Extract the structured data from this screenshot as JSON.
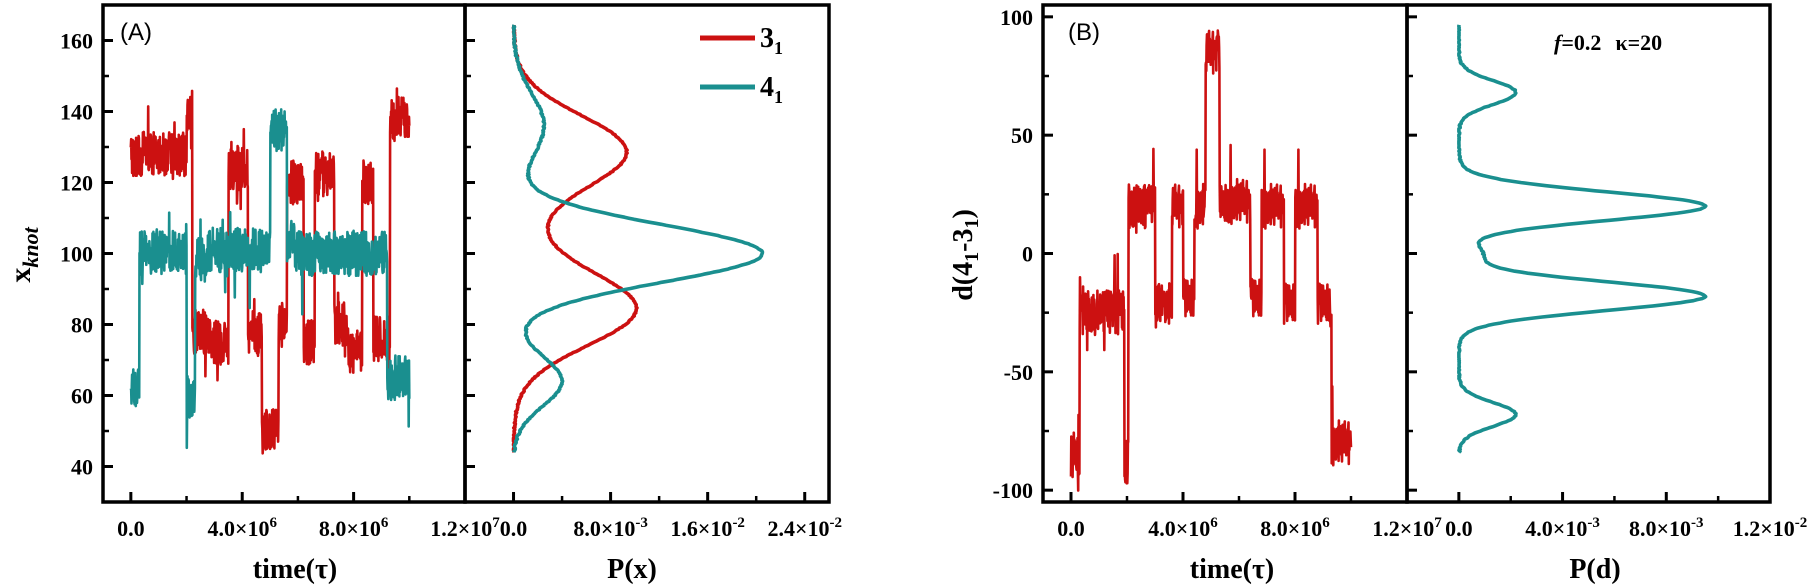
{
  "colors": {
    "knot31": "#cc1111",
    "knot41": "#1a8f8f",
    "axis": "#000000"
  },
  "chart_data": [
    {
      "id": "A-time",
      "type": "line",
      "panel_label": "(A)",
      "ylabel_main": "x",
      "ylabel_sub": "knot",
      "xlabel": "time(τ)",
      "xlim": [
        -1000000,
        12000000
      ],
      "ylim": [
        30,
        170
      ],
      "xticks": [
        0,
        4000000,
        8000000,
        12000000
      ],
      "xtick_labels": [
        "0.0",
        "4.0×10^6",
        "8.0×10^6",
        "1.2×10^7"
      ],
      "yticks": [
        40,
        60,
        80,
        100,
        120,
        140,
        160
      ],
      "ytick_labels": [
        "40",
        "60",
        "80",
        "100",
        "120",
        "140",
        "160"
      ],
      "series": [
        {
          "name": "3_1",
          "color_key": "knot31",
          "segments": [
            [
              0,
              2000000,
              128
            ],
            [
              2000000,
              2200000,
              140
            ],
            [
              2200000,
              2800000,
              78
            ],
            [
              2800000,
              3500000,
              75
            ],
            [
              3500000,
              4200000,
              124
            ],
            [
              4200000,
              4700000,
              78
            ],
            [
              4700000,
              5300000,
              50
            ],
            [
              5300000,
              5600000,
              80
            ],
            [
              5600000,
              6200000,
              120
            ],
            [
              6200000,
              6600000,
              75
            ],
            [
              6600000,
              7300000,
              122
            ],
            [
              7300000,
              7800000,
              80
            ],
            [
              7800000,
              8300000,
              72
            ],
            [
              8300000,
              8700000,
              120
            ],
            [
              8700000,
              9300000,
              76
            ],
            [
              9300000,
              10000000,
              138
            ]
          ]
        },
        {
          "name": "4_1",
          "color_key": "knot41",
          "segments": [
            [
              0,
              300000,
              62
            ],
            [
              300000,
              2000000,
              100
            ],
            [
              2000000,
              2300000,
              60
            ],
            [
              2300000,
              2700000,
              98
            ],
            [
              2700000,
              5000000,
              101
            ],
            [
              5000000,
              5600000,
              135
            ],
            [
              5600000,
              5900000,
              102
            ],
            [
              5900000,
              9200000,
              100
            ],
            [
              9200000,
              10000000,
              65
            ]
          ]
        }
      ]
    },
    {
      "id": "A-dist",
      "type": "line",
      "xlabel": "P(x)",
      "xlim": [
        -0.004,
        0.026
      ],
      "ylim": [
        30,
        170
      ],
      "xticks": [
        0,
        0.008,
        0.016,
        0.024
      ],
      "xtick_labels": [
        "0.0",
        "8.0×10^-3",
        "1.6×10^-2",
        "2.4×10^-2"
      ],
      "legend": {
        "position": "top-right",
        "entries": [
          {
            "base": "3",
            "sub": "1",
            "color_key": "knot31"
          },
          {
            "base": "4",
            "sub": "1",
            "color_key": "knot41"
          }
        ]
      },
      "series": [
        {
          "name": "3_1",
          "color_key": "knot31",
          "peaks": [
            [
              129,
              0.0089,
              10
            ],
            [
              84,
              0.0091,
              10
            ],
            [
              100,
              0.0015,
              18
            ]
          ]
        },
        {
          "name": "4_1",
          "color_key": "knot41",
          "peaks": [
            [
              100,
              0.0205,
              8
            ],
            [
              64,
              0.004,
              7
            ],
            [
              136,
              0.0025,
              9
            ]
          ]
        }
      ]
    },
    {
      "id": "B-time",
      "type": "line",
      "panel_label": "(B)",
      "ylabel_main": "d(4",
      "ylabel_sub": "1",
      "ylabel_mid": "-3",
      "ylabel_sub2": "1",
      "ylabel_end": ")",
      "xlabel": "time(τ)",
      "xlim": [
        -1000000,
        12000000
      ],
      "ylim": [
        -105,
        105
      ],
      "xticks": [
        0,
        4000000,
        8000000,
        12000000
      ],
      "xtick_labels": [
        "0.0",
        "4.0×10^6",
        "8.0×10^6",
        "1.2×10^7"
      ],
      "yticks": [
        -100,
        -50,
        0,
        50,
        100
      ],
      "ytick_labels": [
        "-100",
        "-50",
        "0",
        "50",
        "100"
      ],
      "series": [
        {
          "name": "d",
          "color_key": "knot31",
          "segments": [
            [
              0,
              300000,
              -85
            ],
            [
              300000,
              1900000,
              -25
            ],
            [
              1900000,
              2050000,
              -88
            ],
            [
              2050000,
              3000000,
              20
            ],
            [
              3000000,
              3600000,
              -22
            ],
            [
              3600000,
              4000000,
              20
            ],
            [
              4000000,
              4400000,
              -20
            ],
            [
              4400000,
              4800000,
              20
            ],
            [
              4800000,
              5300000,
              85
            ],
            [
              5300000,
              5600000,
              20
            ],
            [
              5600000,
              6400000,
              22
            ],
            [
              6400000,
              6800000,
              -20
            ],
            [
              6800000,
              7600000,
              20
            ],
            [
              7600000,
              8000000,
              -22
            ],
            [
              8000000,
              8800000,
              20
            ],
            [
              8800000,
              9300000,
              -22
            ],
            [
              9300000,
              10000000,
              -80
            ]
          ]
        }
      ]
    },
    {
      "id": "B-dist",
      "type": "line",
      "xlabel": "P(d)",
      "xlim": [
        -0.002,
        0.012
      ],
      "ylim": [
        -105,
        105
      ],
      "xticks": [
        0,
        0.004,
        0.008,
        0.012
      ],
      "xtick_labels": [
        "0.0",
        "4.0×10^-3",
        "8.0×10^-3",
        "1.2×10^-2"
      ],
      "annotation": {
        "f_label": "f",
        "f_value": "=0.2",
        "kappa_label": "κ=20"
      },
      "series": [
        {
          "name": "P(d)",
          "color_key": "knot41",
          "peaks": [
            [
              20,
              0.0095,
              6
            ],
            [
              -18,
              0.0095,
              6
            ],
            [
              68,
              0.0022,
              5
            ],
            [
              -68,
              0.0022,
              5
            ],
            [
              0,
              0.0008,
              4
            ]
          ]
        }
      ]
    }
  ]
}
